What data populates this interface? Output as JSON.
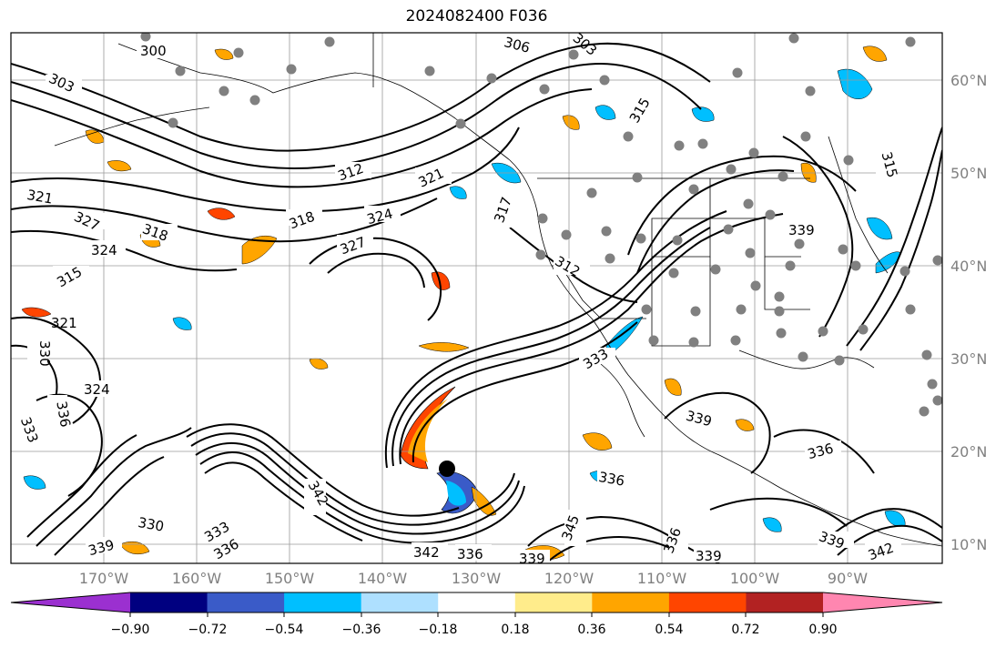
{
  "title": "2024082400 F036",
  "latitude_labels": [
    "60°N",
    "50°N",
    "40°N",
    "30°N",
    "20°N",
    "10°N"
  ],
  "longitude_labels": [
    "170°W",
    "160°W",
    "150°W",
    "140°W",
    "130°W",
    "120°W",
    "110°W",
    "100°W",
    "90°W"
  ],
  "contour_labels": [
    "300",
    "303",
    "306",
    "303",
    "315",
    "312",
    "321",
    "318",
    "324",
    "327",
    "318",
    "324",
    "321",
    "327",
    "315",
    "321",
    "330",
    "324",
    "336",
    "333",
    "330",
    "339",
    "336",
    "333",
    "342",
    "345",
    "342",
    "339",
    "336",
    "339",
    "336",
    "339",
    "342",
    "312",
    "317",
    "315",
    "339",
    "333",
    "336",
    "339",
    "336"
  ],
  "colorbar": {
    "tick_labels": [
      "−0.90",
      "−0.72",
      "−0.54",
      "−0.36",
      "−0.18",
      "0.18",
      "0.36",
      "0.54",
      "0.72",
      "0.90"
    ],
    "colors": [
      "#9b30d0",
      "#000080",
      "#3a5bc8",
      "#00bfff",
      "#aee0ff",
      "#ffffff",
      "#ffec8b",
      "#ffa500",
      "#ff4500",
      "#b22222",
      "#ff86b0"
    ]
  },
  "colors": {
    "contour": "#000000",
    "grid": "#999999",
    "station_dot": "#808080",
    "storm_center": "#000000"
  }
}
